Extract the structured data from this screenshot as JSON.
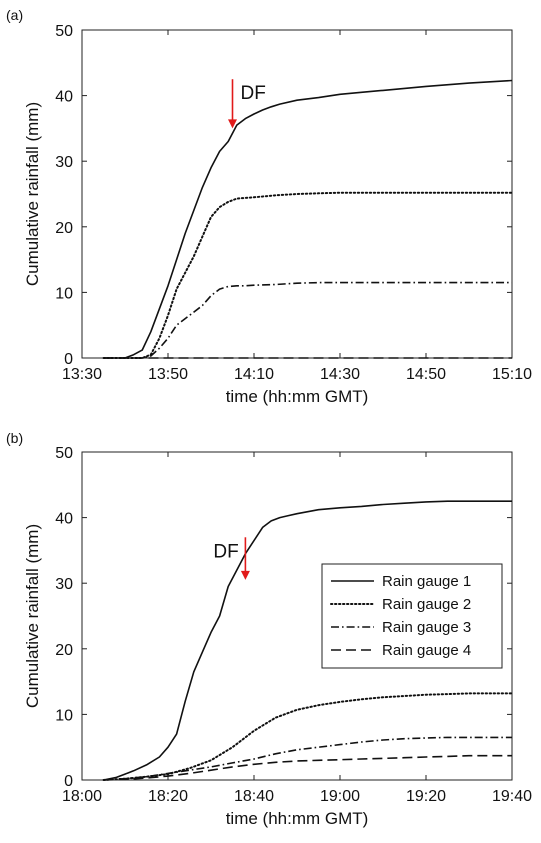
{
  "chart_data": [
    {
      "panel_label": "(a)",
      "type": "line",
      "xlabel": "time (hh:mm GMT)",
      "ylabel": "Cumulative rainfall (mm)",
      "x_unit": "minutes after 13:30 GMT",
      "xlim": [
        0,
        100
      ],
      "ylim": [
        0,
        50
      ],
      "xticks": [
        0,
        20,
        40,
        60,
        80,
        100
      ],
      "xtick_labels": [
        "13:30",
        "13:50",
        "14:10",
        "14:30",
        "14:50",
        "15:10"
      ],
      "yticks": [
        0,
        10,
        20,
        30,
        40,
        50
      ],
      "ytick_labels": [
        "0",
        "10",
        "20",
        "30",
        "40",
        "50"
      ],
      "grid": false,
      "legend": null,
      "annotations": [
        {
          "text": "DF",
          "x": 35,
          "y_from": 42.5,
          "y_to": 35,
          "color": "#e11a1a"
        }
      ],
      "series": [
        {
          "style": "solid",
          "x": [
            5,
            10,
            12,
            14,
            16,
            18,
            20,
            22,
            24,
            26,
            28,
            30,
            32,
            34,
            36,
            38,
            40,
            42,
            44,
            46,
            50,
            55,
            60,
            65,
            70,
            80,
            90,
            100
          ],
          "y": [
            0,
            0,
            0.5,
            1.2,
            4,
            7.5,
            11,
            15,
            19,
            22.5,
            26,
            29,
            31.5,
            33,
            35.5,
            36.5,
            37.2,
            37.8,
            38.3,
            38.7,
            39.3,
            39.7,
            40.2,
            40.5,
            40.8,
            41.4,
            41.9,
            42.3
          ]
        },
        {
          "style": "dotted",
          "x": [
            5,
            10,
            12,
            14,
            16,
            18,
            20,
            22,
            24,
            26,
            28,
            30,
            32,
            34,
            36,
            38,
            40,
            45,
            50,
            55,
            60,
            70,
            80,
            90,
            100
          ],
          "y": [
            0,
            0,
            0,
            0,
            0.5,
            3,
            6.5,
            10.5,
            13,
            15.5,
            18.5,
            21.5,
            23,
            23.8,
            24.3,
            24.4,
            24.5,
            24.8,
            25,
            25.1,
            25.2,
            25.2,
            25.2,
            25.2,
            25.2
          ]
        },
        {
          "style": "dashdot",
          "x": [
            5,
            10,
            14,
            16,
            18,
            20,
            22,
            24,
            26,
            28,
            30,
            32,
            34,
            36,
            38,
            40,
            45,
            50,
            55,
            60,
            70,
            80,
            90,
            100
          ],
          "y": [
            0,
            0,
            0,
            0.3,
            1.5,
            3,
            5,
            6,
            7,
            8,
            9.5,
            10.5,
            10.9,
            11,
            11,
            11.1,
            11.2,
            11.4,
            11.5,
            11.5,
            11.5,
            11.5,
            11.5,
            11.5
          ]
        },
        {
          "style": "dashed",
          "x": [
            5,
            100
          ],
          "y": [
            0,
            0
          ]
        }
      ]
    },
    {
      "panel_label": "(b)",
      "type": "line",
      "xlabel": "time (hh:mm GMT)",
      "ylabel": "Cumulative rainfall (mm)",
      "x_unit": "minutes after 18:00 GMT",
      "xlim": [
        0,
        100
      ],
      "ylim": [
        0,
        50
      ],
      "xticks": [
        0,
        20,
        40,
        60,
        80,
        100
      ],
      "xtick_labels": [
        "18:00",
        "18:20",
        "18:40",
        "19:00",
        "19:20",
        "19:40"
      ],
      "yticks": [
        0,
        10,
        20,
        30,
        40,
        50
      ],
      "ytick_labels": [
        "0",
        "10",
        "20",
        "30",
        "40",
        "50"
      ],
      "grid": false,
      "legend": {
        "position": "right",
        "entries": [
          {
            "label": "Rain gauge 1",
            "style": "solid"
          },
          {
            "label": "Rain gauge 2",
            "style": "dotted"
          },
          {
            "label": "Rain gauge 3",
            "style": "dashdot"
          },
          {
            "label": "Rain gauge 4",
            "style": "dashed"
          }
        ]
      },
      "annotations": [
        {
          "text": "DF",
          "x": 38,
          "y_from": 37,
          "y_to": 30.5,
          "color": "#e11a1a"
        }
      ],
      "series": [
        {
          "name": "Rain gauge 1",
          "style": "solid",
          "x": [
            5,
            8,
            10,
            12,
            15,
            18,
            20,
            22,
            24,
            26,
            28,
            30,
            32,
            34,
            36,
            38,
            40,
            42,
            44,
            46,
            48,
            50,
            55,
            60,
            65,
            70,
            75,
            80,
            85,
            90,
            95,
            100
          ],
          "y": [
            0,
            0.4,
            0.9,
            1.4,
            2.3,
            3.5,
            5,
            7,
            12,
            16.5,
            19.5,
            22.5,
            25,
            29.5,
            32,
            34.5,
            36.5,
            38.5,
            39.5,
            40,
            40.3,
            40.6,
            41.2,
            41.5,
            41.7,
            42,
            42.2,
            42.4,
            42.5,
            42.5,
            42.5,
            42.5
          ]
        },
        {
          "name": "Rain gauge 2",
          "style": "dotted",
          "x": [
            5,
            10,
            15,
            20,
            25,
            30,
            35,
            40,
            45,
            50,
            55,
            60,
            65,
            70,
            75,
            80,
            85,
            90,
            95,
            100
          ],
          "y": [
            0,
            0.2,
            0.5,
            0.9,
            1.8,
            3,
            5,
            7.5,
            9.5,
            10.7,
            11.4,
            11.9,
            12.3,
            12.6,
            12.8,
            13,
            13.1,
            13.2,
            13.2,
            13.2
          ]
        },
        {
          "name": "Rain gauge 3",
          "style": "dashdot",
          "x": [
            5,
            10,
            15,
            20,
            25,
            30,
            35,
            40,
            45,
            50,
            55,
            60,
            65,
            70,
            75,
            80,
            85,
            90,
            95,
            100
          ],
          "y": [
            0,
            0.2,
            0.5,
            1,
            1.5,
            2,
            2.6,
            3.2,
            4,
            4.6,
            5,
            5.4,
            5.8,
            6.1,
            6.3,
            6.4,
            6.5,
            6.5,
            6.5,
            6.5
          ]
        },
        {
          "name": "Rain gauge 4",
          "style": "dashed",
          "x": [
            5,
            10,
            15,
            20,
            25,
            30,
            35,
            40,
            45,
            50,
            55,
            60,
            65,
            70,
            75,
            80,
            85,
            90,
            95,
            100
          ],
          "y": [
            0,
            0.1,
            0.3,
            0.6,
            1,
            1.5,
            2,
            2.4,
            2.7,
            2.9,
            3,
            3.1,
            3.2,
            3.3,
            3.4,
            3.5,
            3.6,
            3.7,
            3.7,
            3.7
          ]
        }
      ]
    }
  ]
}
